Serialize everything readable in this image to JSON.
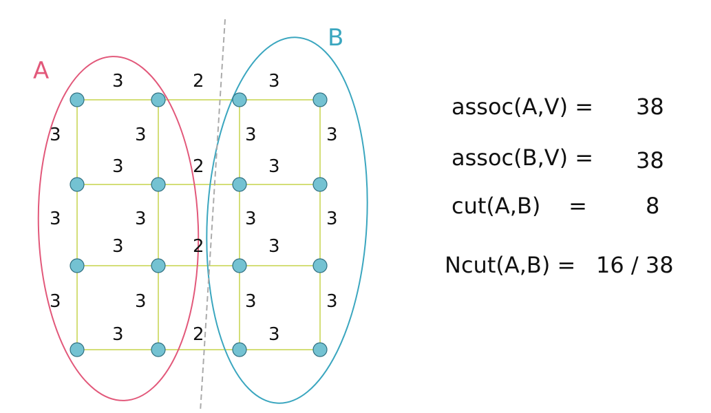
{
  "sets": {
    "a": {
      "label": "A",
      "color": "#e2587a"
    },
    "b": {
      "label": "B",
      "color": "#3aa6bf"
    }
  },
  "node_color": "#74c2d2",
  "edge_color": "#c5d34a",
  "cut_line_color": "#aaaaaa",
  "grid": {
    "rows": 4,
    "cols": 4,
    "horizontal_weights": [
      [
        "3",
        "2",
        "3"
      ],
      [
        "3",
        "2",
        "3"
      ],
      [
        "3",
        "2",
        "3"
      ],
      [
        "3",
        "2",
        "3"
      ]
    ],
    "vertical_weights": [
      [
        "3",
        "3",
        "3",
        "3"
      ],
      [
        "3",
        "3",
        "3",
        "3"
      ],
      [
        "3",
        "3",
        "3",
        "3"
      ]
    ]
  },
  "equations": [
    {
      "lhs": "assoc(A,V) =",
      "rhs": "38"
    },
    {
      "lhs": "assoc(B,V) =",
      "rhs": "38"
    },
    {
      "lhs": "cut(A,B)    =",
      "rhs": "8"
    },
    {
      "lhs": "Ncut(A,B) =",
      "rhs": "16 / 38"
    }
  ]
}
